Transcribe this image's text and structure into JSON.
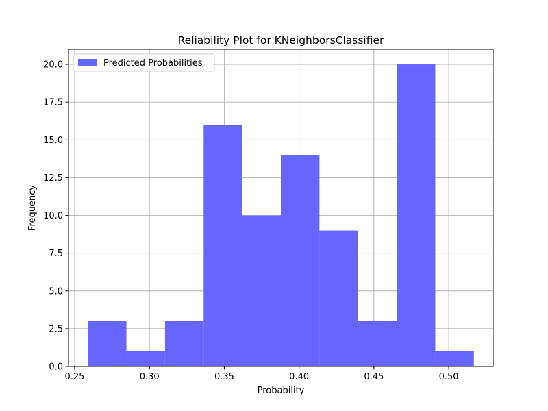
{
  "chart_data": {
    "type": "bar",
    "title": "Reliability Plot for KNeighborsClassifier",
    "xlabel": "Probability",
    "ylabel": "Frequency",
    "bin_edges": [
      0.2588,
      0.2846,
      0.3104,
      0.3362,
      0.362,
      0.3878,
      0.4136,
      0.4394,
      0.4652,
      0.491,
      0.5168
    ],
    "values": [
      3,
      1,
      3,
      16,
      10,
      14,
      9,
      3,
      20,
      1
    ],
    "xlim": [
      0.2459,
      0.5297
    ],
    "ylim": [
      0,
      21
    ],
    "xticks": [
      0.25,
      0.3,
      0.35,
      0.4,
      0.45,
      0.5
    ],
    "xtick_labels": [
      "0.25",
      "0.30",
      "0.35",
      "0.40",
      "0.45",
      "0.50"
    ],
    "yticks": [
      0,
      2.5,
      5,
      7.5,
      10,
      12.5,
      15,
      17.5,
      20
    ],
    "ytick_labels": [
      "0.0",
      "2.5",
      "5.0",
      "7.5",
      "10.0",
      "12.5",
      "15.0",
      "17.5",
      "20.0"
    ],
    "grid": true,
    "legend": {
      "position": "upper-left",
      "entries": [
        "Predicted Probabilities"
      ]
    },
    "bar_color": "#6666ff",
    "series": [
      {
        "name": "Predicted Probabilities",
        "values": [
          3,
          1,
          3,
          16,
          10,
          14,
          9,
          3,
          20,
          1
        ]
      }
    ]
  }
}
